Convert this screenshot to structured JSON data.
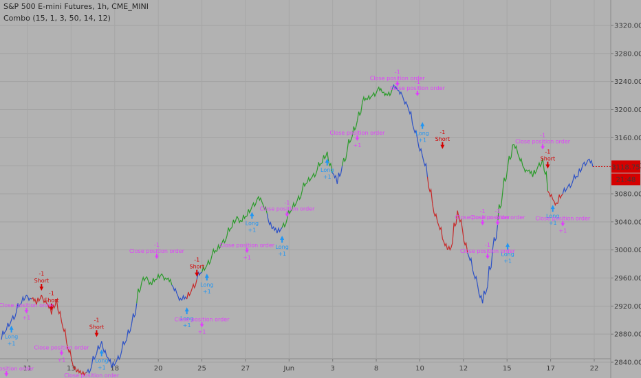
{
  "header": {
    "symbol_line": "S&P 500 E-mini Futures, 1h, CME_MINI",
    "indicator_line": "Combo (15, 1, 3, 50, 14, 12)"
  },
  "price_badge": {
    "price": "3118.75",
    "countdown": "21:48"
  },
  "colors": {
    "background": "#b2b2b2",
    "up": "#2a9b2a",
    "down": "#c62828",
    "neutral": "#2b50c6",
    "long_arrow": "#2196f3",
    "short_arrow": "#d50000",
    "close_order": "#e040fb",
    "badge": "#d50000"
  },
  "chart_data": {
    "type": "line",
    "title": "S&P 500 E-mini Futures, 1h, CME_MINI",
    "xlabel": "",
    "ylabel": "",
    "ylim": [
      2820,
      3360
    ],
    "y_ticks": [
      2840,
      2880,
      2920,
      2960,
      3000,
      3040,
      3080,
      3120,
      3160,
      3200,
      3240,
      3280,
      3320
    ],
    "x_ticks": [
      "11",
      "13",
      "18",
      "20",
      "25",
      "27",
      "Jun",
      "3",
      "8",
      "10",
      "12",
      "15",
      "17",
      "22"
    ],
    "grid": true,
    "last_price": 3118.75,
    "series": [
      {
        "values": [
          2872,
          2886,
          2900,
          2912,
          2924,
          2936,
          2930,
          2922,
          2936,
          2924,
          2908,
          2930,
          2898,
          2868,
          2844,
          2826,
          2822,
          2825,
          2834,
          2852,
          2870,
          2848,
          2832,
          2842,
          2856,
          2872,
          2895,
          2924,
          2954,
          2962,
          2950,
          2958,
          2966,
          2958,
          2950,
          2938,
          2928,
          2930,
          2944,
          2958,
          2968,
          2978,
          2992,
          2998,
          3010,
          3020,
          3032,
          3048,
          3040,
          3048,
          3062,
          3072,
          3068,
          3052,
          3030,
          3024,
          3032,
          3044,
          3058,
          3070,
          3084,
          3096,
          3104,
          3114,
          3124,
          3140,
          3110,
          3094,
          3120,
          3142,
          3162,
          3184,
          3210,
          3214,
          3220,
          3228,
          3224,
          3220,
          3230,
          3228,
          3220,
          3206,
          3180,
          3158,
          3134,
          3104,
          3066,
          3040,
          3016,
          3000,
          3010,
          3056,
          3028,
          2996,
          2972,
          2950,
          2924,
          2948,
          3000,
          3036,
          3082,
          3118,
          3150,
          3138,
          3120,
          3112,
          3104,
          3118,
          3130,
          3084,
          3072,
          3066,
          3080,
          3090,
          3098,
          3104,
          3122,
          3128,
          3118.75
        ],
        "bar_colors": [
          "neutral",
          "neutral",
          "neutral",
          "neutral",
          "neutral",
          "neutral",
          "down",
          "down",
          "down",
          "down",
          "down",
          "down",
          "down",
          "down",
          "down",
          "down",
          "down",
          "neutral",
          "neutral",
          "neutral",
          "neutral",
          "neutral",
          "neutral",
          "neutral",
          "neutral",
          "neutral",
          "neutral",
          "up",
          "up",
          "up",
          "up",
          "up",
          "up",
          "up",
          "neutral",
          "neutral",
          "neutral",
          "down",
          "down",
          "neutral",
          "up",
          "up",
          "up",
          "up",
          "up",
          "up",
          "up",
          "up",
          "up",
          "up",
          "up",
          "up",
          "up",
          "neutral",
          "neutral",
          "neutral",
          "up",
          "up",
          "up",
          "up",
          "up",
          "up",
          "up",
          "up",
          "up",
          "up",
          "neutral",
          "neutral",
          "up",
          "up",
          "up",
          "up",
          "up",
          "up",
          "up",
          "up",
          "up",
          "up",
          "neutral",
          "neutral",
          "neutral",
          "neutral",
          "neutral",
          "neutral",
          "neutral",
          "down",
          "down",
          "down",
          "down",
          "down",
          "down",
          "down",
          "down",
          "neutral",
          "neutral",
          "neutral",
          "neutral",
          "neutral",
          "neutral",
          "up",
          "up",
          "up",
          "up",
          "up",
          "up",
          "up",
          "up",
          "up",
          "up",
          "down",
          "down",
          "down",
          "neutral",
          "neutral",
          "neutral",
          "neutral",
          "neutral",
          "neutral",
          "neutral"
        ]
      }
    ],
    "annotations": {
      "long_labels": [
        {
          "bar": 2,
          "value": 2902
        },
        {
          "bar": 20,
          "value": 2868
        },
        {
          "bar": 37,
          "value": 2928
        },
        {
          "bar": 41,
          "value": 2976
        },
        {
          "bar": 50,
          "value": 3064
        },
        {
          "bar": 56,
          "value": 3030
        },
        {
          "bar": 65,
          "value": 3140
        },
        {
          "bar": 84,
          "value": 3192
        },
        {
          "bar": 101,
          "value": 3020
        },
        {
          "bar": 110,
          "value": 3074
        }
      ],
      "short_labels": [
        {
          "bar": 8,
          "value": 2936
        },
        {
          "bar": 10,
          "value": 2908
        },
        {
          "bar": 19,
          "value": 2870
        },
        {
          "bar": 39,
          "value": 2956
        },
        {
          "bar": 88,
          "value": 3138
        },
        {
          "bar": 109,
          "value": 3110
        }
      ],
      "close_labels": [
        {
          "bar": 1,
          "value": 2842
        },
        {
          "bar": 5,
          "value": 2932
        },
        {
          "bar": 12,
          "value": 2872
        },
        {
          "bar": 18,
          "value": 2832
        },
        {
          "bar": 31,
          "value": 2992
        },
        {
          "bar": 40,
          "value": 2912
        },
        {
          "bar": 49,
          "value": 3018
        },
        {
          "bar": 57,
          "value": 3052
        },
        {
          "bar": 71,
          "value": 3178
        },
        {
          "bar": 79,
          "value": 3238
        },
        {
          "bar": 83,
          "value": 3224
        },
        {
          "bar": 96,
          "value": 3040
        },
        {
          "bar": 97,
          "value": 2992
        },
        {
          "bar": 99,
          "value": 3040
        },
        {
          "bar": 108,
          "value": 3148
        },
        {
          "bar": 112,
          "value": 3056
        }
      ],
      "long_text": "Long",
      "short_text": "Short",
      "close_text": "Close position order",
      "plus_text": "+1",
      "minus_text": "-1"
    }
  }
}
